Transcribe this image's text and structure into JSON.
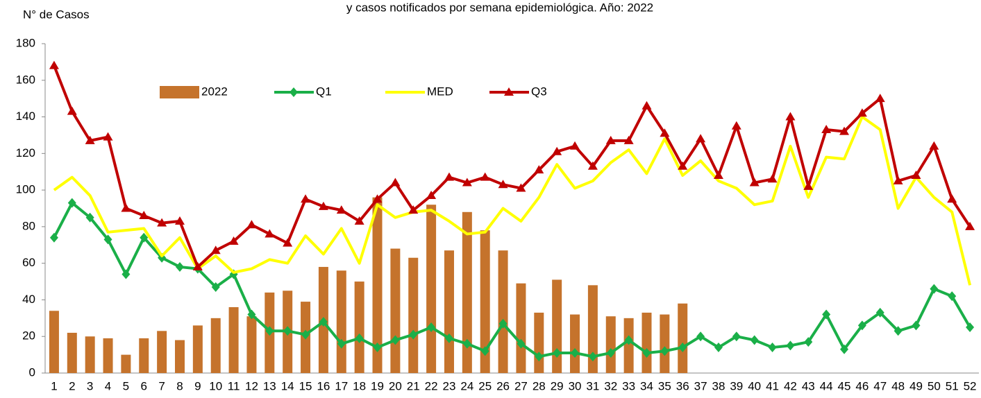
{
  "chart_data": {
    "type": "bar-line",
    "title": "y casos notificados por semana epidemiológica.  Año: 2022",
    "y_axis_label": "N° de Casos",
    "categories": [
      "1",
      "2",
      "3",
      "4",
      "5",
      "6",
      "7",
      "8",
      "9",
      "10",
      "11",
      "12",
      "13",
      "14",
      "15",
      "16",
      "17",
      "18",
      "19",
      "20",
      "21",
      "22",
      "23",
      "24",
      "25",
      "26",
      "27",
      "28",
      "29",
      "30",
      "31",
      "32",
      "33",
      "34",
      "35",
      "36",
      "37",
      "38",
      "39",
      "40",
      "41",
      "42",
      "43",
      "44",
      "45",
      "46",
      "47",
      "48",
      "49",
      "50",
      "51",
      "52"
    ],
    "series": [
      {
        "name": "2022",
        "type": "bar",
        "color": "#c5732c",
        "values": [
          34,
          22,
          20,
          19,
          10,
          19,
          23,
          18,
          26,
          30,
          36,
          31,
          44,
          45,
          39,
          58,
          56,
          50,
          96,
          68,
          63,
          92,
          67,
          88,
          78,
          67,
          49,
          33,
          51,
          32,
          48,
          31,
          30,
          33,
          32,
          38,
          null,
          null,
          null,
          null,
          null,
          null,
          null,
          null,
          null,
          null,
          null,
          null,
          null,
          null,
          null,
          null
        ]
      },
      {
        "name": "Q1",
        "type": "line",
        "marker": "diamond",
        "color": "#1aaf48",
        "values": [
          74,
          93,
          85,
          73,
          54,
          74,
          63,
          58,
          57,
          47,
          54,
          32,
          23,
          23,
          21,
          28,
          16,
          19,
          14,
          18,
          21,
          25,
          19,
          16,
          12,
          27,
          16,
          9,
          11,
          11,
          9,
          11,
          18,
          11,
          12,
          14,
          20,
          14,
          20,
          18,
          14,
          15,
          17,
          32,
          13,
          26,
          33,
          23,
          26,
          46,
          42,
          25
        ]
      },
      {
        "name": "MED",
        "type": "line",
        "marker": "none",
        "color": "#ffff00",
        "values": [
          100,
          107,
          97,
          77,
          78,
          79,
          64,
          74,
          57,
          64,
          55,
          57,
          62,
          60,
          75,
          65,
          79,
          60,
          92,
          85,
          88,
          89,
          83,
          76,
          77,
          90,
          83,
          96,
          114,
          101,
          105,
          115,
          122,
          109,
          128,
          108,
          116,
          105,
          101,
          92,
          94,
          124,
          96,
          118,
          117,
          140,
          133,
          90,
          107,
          96,
          88,
          48
        ]
      },
      {
        "name": "Q3",
        "type": "line",
        "marker": "triangle",
        "color": "#c00000",
        "values": [
          168,
          143,
          127,
          129,
          90,
          86,
          82,
          83,
          58,
          67,
          72,
          81,
          76,
          71,
          95,
          91,
          89,
          83,
          95,
          104,
          89,
          97,
          107,
          104,
          107,
          103,
          101,
          111,
          121,
          124,
          113,
          127,
          127,
          146,
          131,
          113,
          128,
          108,
          135,
          104,
          106,
          140,
          102,
          133,
          132,
          142,
          150,
          105,
          108,
          124,
          95,
          80
        ]
      }
    ],
    "ylim": [
      0,
      180
    ],
    "yticks": [
      0,
      20,
      40,
      60,
      80,
      100,
      120,
      140,
      160,
      180
    ],
    "grid": false,
    "legend_position": "top-left"
  }
}
